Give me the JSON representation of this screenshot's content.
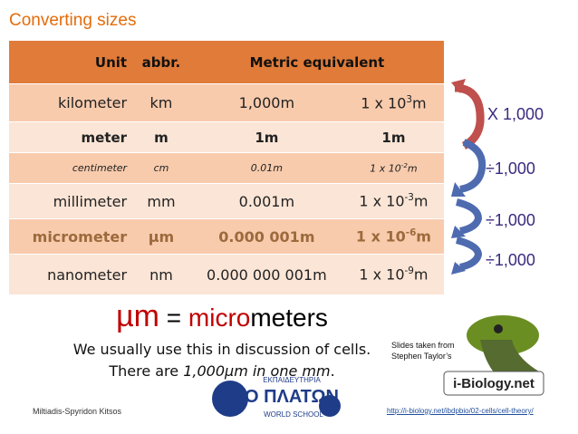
{
  "title": "Converting sizes",
  "table": {
    "header": [
      "Unit",
      "abbr.",
      "Metric equivalent"
    ],
    "rows": [
      {
        "unit": "kilometer",
        "abbr": "km",
        "decimal": "1,000m",
        "sci_base": "1 x 10",
        "sci_exp": "3",
        "sci_unit": "m"
      },
      {
        "unit": "meter",
        "abbr": "m",
        "decimal": "1m",
        "sci_base": "1m",
        "sci_exp": null,
        "sci_unit": null
      },
      {
        "unit": "centimeter",
        "abbr": "cm",
        "decimal": "0.01m",
        "sci_base": "1 x 10",
        "sci_exp": "-2",
        "sci_unit": "m"
      },
      {
        "unit": "millimeter",
        "abbr": "mm",
        "decimal": "0.001m",
        "sci_base": "1 x 10",
        "sci_exp": "-3",
        "sci_unit": "m"
      },
      {
        "unit": "micrometer",
        "abbr": "µm",
        "decimal": "0.000 001m",
        "sci_base": "1 x 10",
        "sci_exp": "-6",
        "sci_unit": "m"
      },
      {
        "unit": "nanometer",
        "abbr": "nm",
        "decimal": "0.000 000 001m",
        "sci_base": "1 x 10",
        "sci_exp": "-9",
        "sci_unit": "m"
      }
    ]
  },
  "arrows": [
    "X 1,000",
    "÷1,000",
    "÷1,000",
    "÷1,000"
  ],
  "definition": {
    "symbol": "µm",
    "equals": "=",
    "prefix": "micro",
    "rest": "meters"
  },
  "notes": {
    "line1": "We usually use this in discussion of cells.",
    "line2_start": "There are ",
    "line2_emph": "1,000µm in one mm",
    "line2_end": "."
  },
  "credit": {
    "line1": "Slides taken from",
    "line2": "Stephen Taylor’s",
    "logo": "i-Biology.net",
    "url": "http://i-biology.net/ibdpbio/02-cells/cell-theory/"
  },
  "school": {
    "top": "ΕΚΠΑΙΔΕΥΤΗΡΙΑ",
    "name": "Ο ΠΛΑΤΩΝ",
    "bottom": "WORLD SCHOOL"
  },
  "author": "Miltiadis-Spyridon Kitsos"
}
